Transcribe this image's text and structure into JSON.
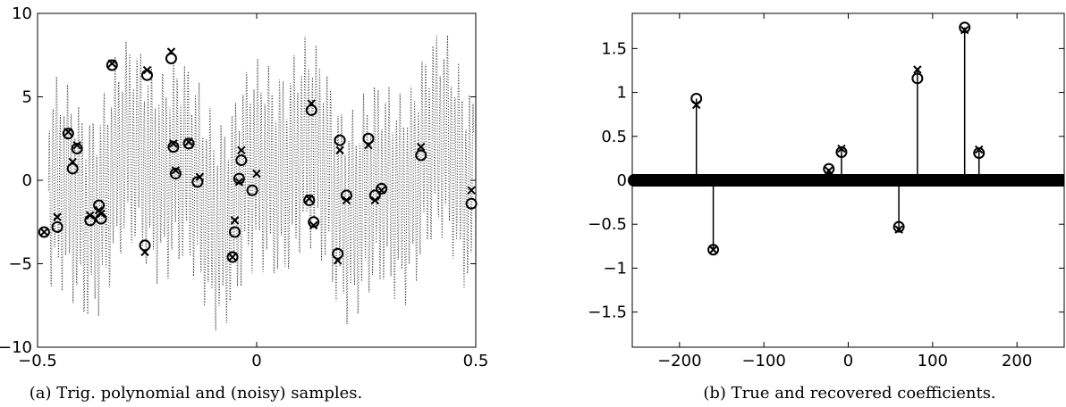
{
  "chart_data": [
    {
      "type": "scatter",
      "caption": "(a) Trig. polynomial and (noisy) samples.",
      "xlim": [
        -0.5,
        0.5
      ],
      "ylim": [
        -10,
        10
      ],
      "x_ticks": [
        -0.5,
        0,
        0.5
      ],
      "x_tick_labels": [
        "−0.5",
        "0",
        "0.5"
      ],
      "y_ticks": [
        -10,
        -5,
        0,
        5,
        10
      ],
      "y_tick_labels": [
        "−10",
        "−5",
        "0",
        "5",
        "10"
      ],
      "background": "dotted oscillating curve",
      "series": [
        {
          "marker": "o",
          "x": [
            -0.485,
            -0.455,
            -0.43,
            -0.42,
            -0.41,
            -0.38,
            -0.36,
            -0.355,
            -0.33,
            -0.255,
            -0.25,
            -0.195,
            -0.19,
            -0.185,
            -0.155,
            -0.135,
            -0.055,
            -0.05,
            -0.04,
            -0.035,
            -0.01,
            0.12,
            0.125,
            0.13,
            0.185,
            0.19,
            0.205,
            0.255,
            0.27,
            0.285,
            0.375,
            0.49
          ],
          "y": [
            -3.1,
            -2.8,
            2.8,
            0.7,
            1.9,
            -2.4,
            -1.5,
            -2.3,
            6.9,
            -3.9,
            6.3,
            7.3,
            2.0,
            0.4,
            2.2,
            -0.1,
            -4.6,
            -3.1,
            0.1,
            1.2,
            -0.6,
            -1.2,
            4.2,
            -2.5,
            -4.4,
            2.4,
            -0.9,
            2.5,
            -0.9,
            -0.5,
            1.5,
            -1.4
          ]
        },
        {
          "marker": "x",
          "x": [
            -0.485,
            -0.455,
            -0.43,
            -0.42,
            -0.41,
            -0.38,
            -0.36,
            -0.355,
            -0.33,
            -0.255,
            -0.25,
            -0.195,
            -0.19,
            -0.185,
            -0.155,
            -0.13,
            -0.055,
            -0.05,
            -0.04,
            -0.035,
            0.0,
            0.12,
            0.125,
            0.13,
            0.185,
            0.19,
            0.205,
            0.255,
            0.27,
            0.285,
            0.375,
            0.49
          ],
          "y": [
            -3.1,
            -2.2,
            2.9,
            1.1,
            2.1,
            -2.1,
            -1.8,
            -2.0,
            7.0,
            -4.3,
            6.6,
            7.7,
            2.2,
            0.6,
            2.3,
            0.2,
            -4.6,
            -2.4,
            -0.1,
            1.8,
            0.4,
            -1.1,
            4.6,
            -2.7,
            -4.8,
            1.8,
            -1.2,
            2.1,
            -1.2,
            -0.6,
            2.0,
            -0.6
          ]
        }
      ]
    },
    {
      "type": "stem",
      "caption": "(b) True and recovered coefficients.",
      "xlim": [
        -256,
        256
      ],
      "ylim": [
        -1.9,
        1.9
      ],
      "x_ticks": [
        -200,
        -100,
        0,
        100,
        200
      ],
      "x_tick_labels": [
        "−200",
        "−100",
        "0",
        "100",
        "200"
      ],
      "y_ticks": [
        -1.5,
        -1,
        -0.5,
        0,
        0.5,
        1,
        1.5
      ],
      "y_tick_labels": [
        "−1.5",
        "−1",
        "−0.5",
        "0",
        "0.5",
        "1",
        "1.5"
      ],
      "series": [
        {
          "marker": "o",
          "x": [
            -180,
            -160,
            -23,
            -8,
            60,
            82,
            138,
            155
          ],
          "y": [
            0.93,
            -0.79,
            0.13,
            0.32,
            -0.53,
            1.16,
            1.74,
            0.31
          ]
        },
        {
          "marker": "x",
          "x": [
            -180,
            -160,
            -23,
            -8,
            60,
            82,
            138,
            155
          ],
          "y": [
            0.86,
            -0.79,
            0.11,
            0.36,
            -0.56,
            1.26,
            1.71,
            0.35
          ]
        }
      ]
    }
  ]
}
